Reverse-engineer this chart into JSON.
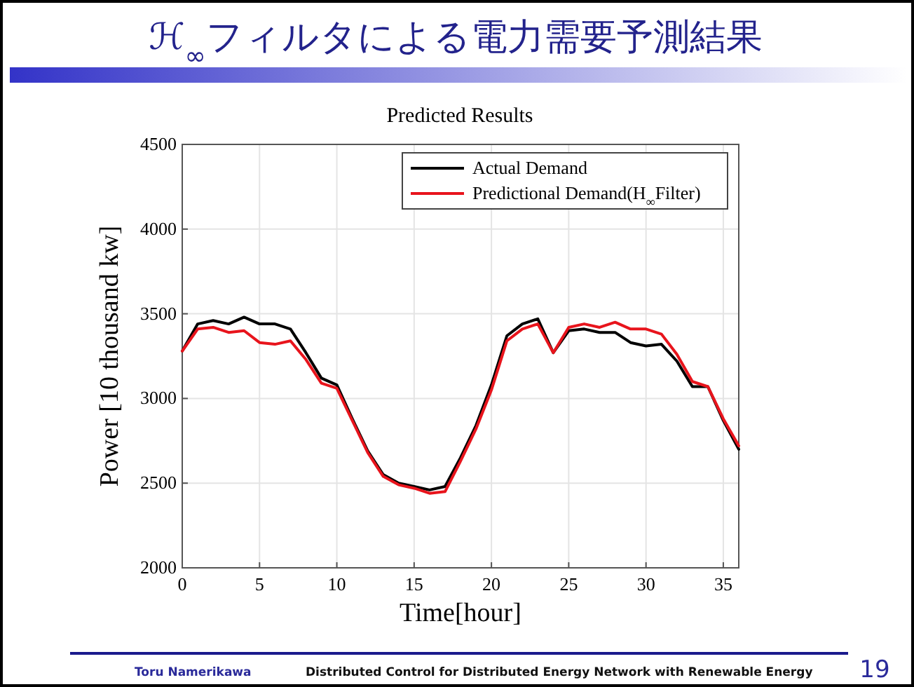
{
  "chart_data": {
    "type": "line",
    "title": "ℋ$_{∞}$フィルタによる電力需要予測結果",
    "subtitle": "Predicted Results",
    "xlabel": "Time[hour]",
    "ylabel": "Power [10 thousand kw]",
    "x": [
      0,
      1,
      2,
      3,
      4,
      5,
      6,
      7,
      8,
      9,
      10,
      11,
      12,
      13,
      14,
      15,
      16,
      17,
      18,
      19,
      20,
      21,
      22,
      23,
      24,
      25,
      26,
      27,
      28,
      29,
      30,
      31,
      32,
      33,
      34,
      35,
      36
    ],
    "series": [
      {
        "name": "Actual Demand",
        "color": "#000000",
        "values": [
          3280,
          3440,
          3460,
          3440,
          3480,
          3440,
          3440,
          3410,
          3270,
          3120,
          3080,
          2880,
          2690,
          2550,
          2500,
          2480,
          2460,
          2480,
          2650,
          2840,
          3080,
          3370,
          3440,
          3470,
          3270,
          3400,
          3410,
          3390,
          3390,
          3330,
          3310,
          3320,
          3220,
          3070,
          3070,
          2870,
          2700
        ]
      },
      {
        "name": "Predictional Demand(H$_{∞}$Filter)",
        "color": "#e8141c",
        "values": [
          3280,
          3410,
          3420,
          3390,
          3400,
          3330,
          3320,
          3340,
          3230,
          3090,
          3060,
          2870,
          2680,
          2540,
          2490,
          2470,
          2440,
          2450,
          2630,
          2820,
          3050,
          3340,
          3410,
          3440,
          3270,
          3420,
          3440,
          3420,
          3450,
          3410,
          3410,
          3380,
          3260,
          3100,
          3070,
          2880,
          2720
        ]
      }
    ],
    "xlim": [
      0,
      36
    ],
    "xticks": [
      0,
      5,
      10,
      15,
      20,
      25,
      30,
      35
    ],
    "ylim": [
      2000,
      4500
    ],
    "yticks": [
      2000,
      2500,
      3000,
      3500,
      4000,
      4500
    ],
    "grid": true,
    "legend": "top right",
    "line_style": "solid",
    "marker": "none",
    "annotations": [
      "Toru Namerikawa",
      "Distributed Control for Distributed Energy Network with Renewable Energy",
      "19"
    ]
  }
}
